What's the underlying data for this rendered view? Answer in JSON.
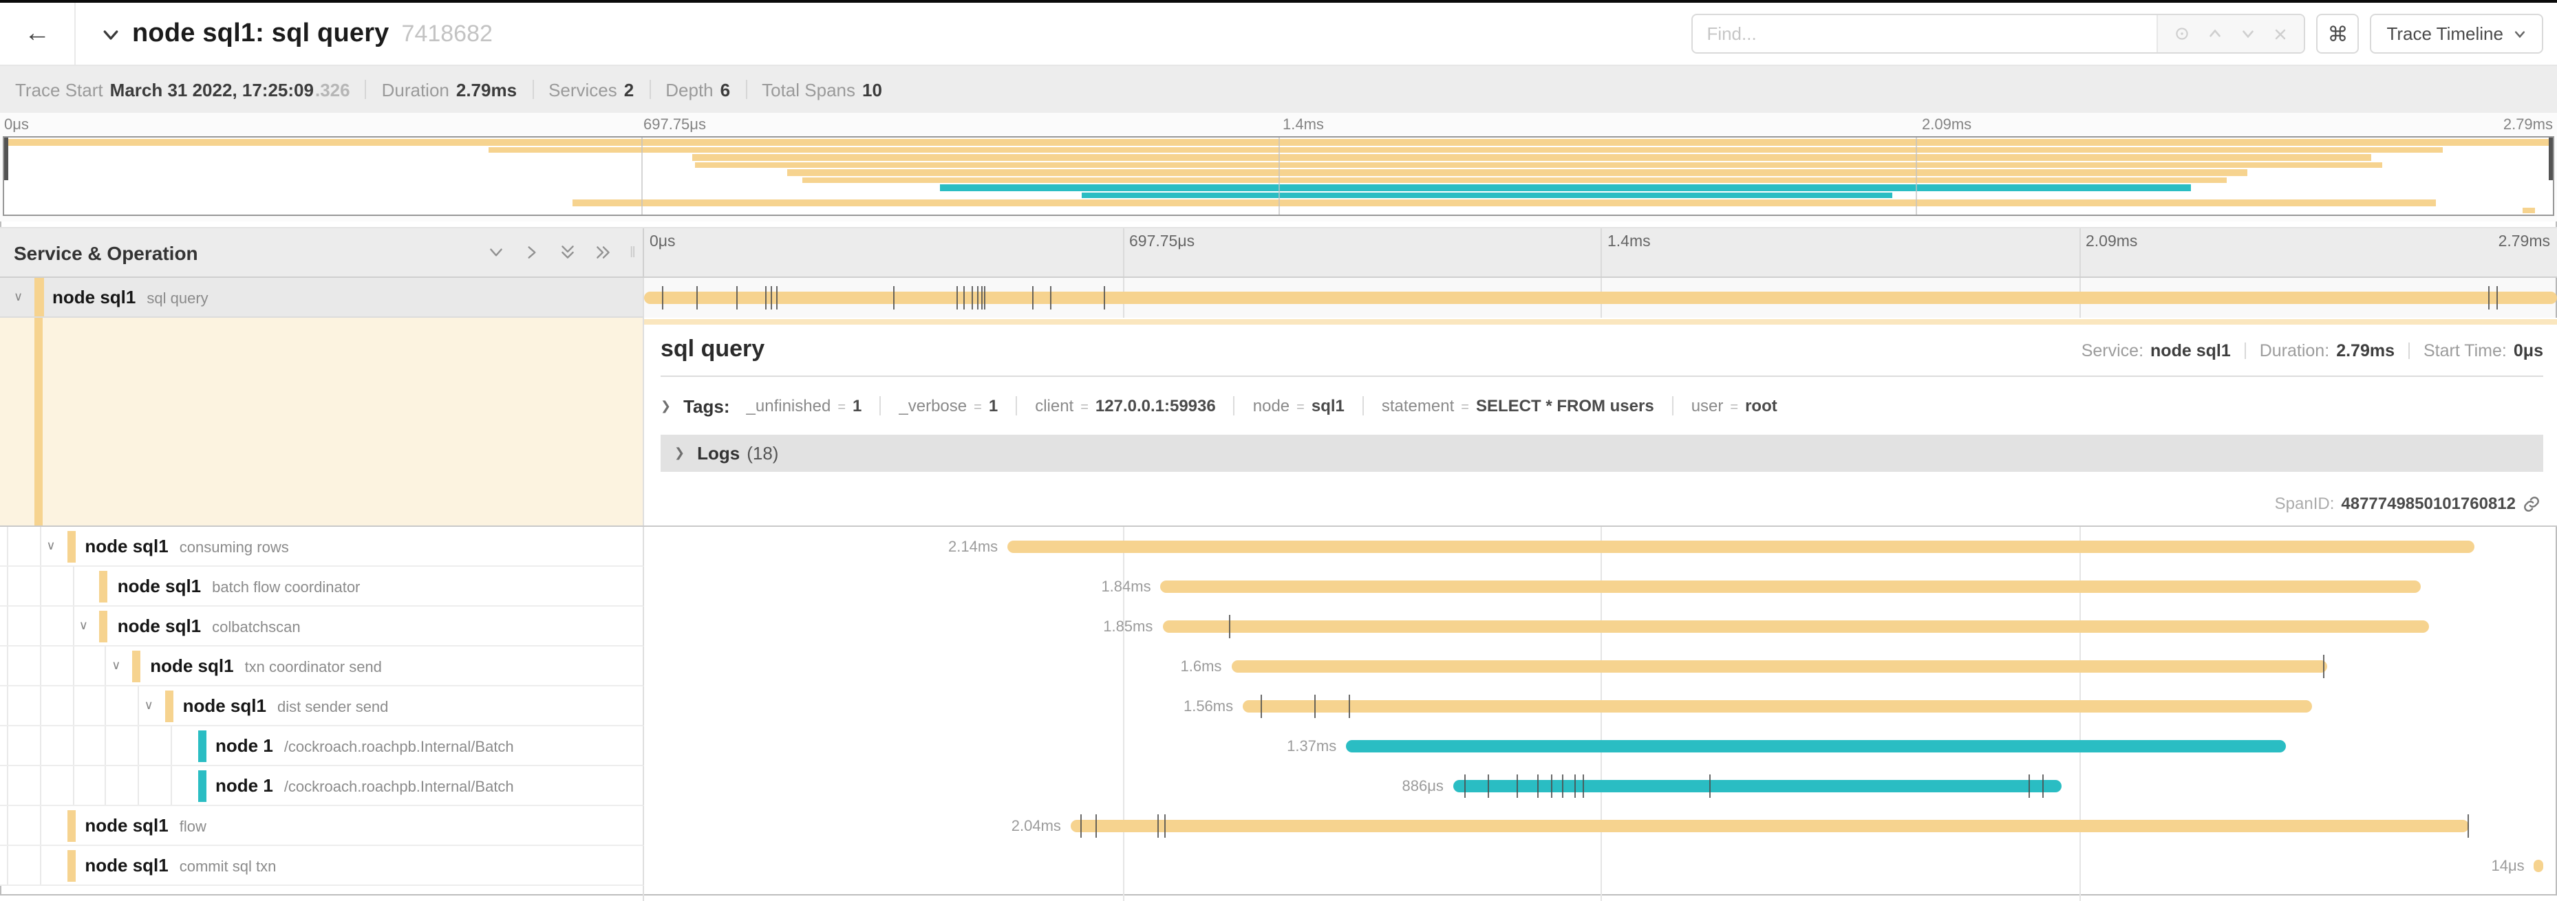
{
  "colors": {
    "tan": "#f6d38f",
    "teal": "#2abdc3",
    "tan_light": "#fae6be",
    "cream": "#fcf3e0"
  },
  "icons": {
    "back_arrow": "←",
    "cmd_glyph": "⌘",
    "chevron_small": "∨",
    "resizer": "‖"
  },
  "header": {
    "title": "node sql1: sql query",
    "trace_id": "7418682",
    "find_placeholder": "Find...",
    "view_selector_label": "Trace Timeline"
  },
  "info": {
    "trace_start_label": "Trace Start",
    "trace_start_value": "March 31 2022, 17:25:09",
    "trace_start_fraction": ".326",
    "duration_label": "Duration",
    "duration_value": "2.79ms",
    "services_label": "Services",
    "services_value": "2",
    "depth_label": "Depth",
    "depth_value": "6",
    "total_spans_label": "Total Spans",
    "total_spans_value": "10"
  },
  "timeline": {
    "ruler_labels": [
      "0μs",
      "697.75μs",
      "1.4ms",
      "2.09ms",
      "2.79ms"
    ]
  },
  "left_header": {
    "title": "Service & Operation"
  },
  "spans": [
    {
      "service": "node sql1",
      "operation": "sql query",
      "depth": 0,
      "color": "tan",
      "has_children": true,
      "selected": true,
      "start": 0,
      "end": 1,
      "duration": "",
      "ticks": [
        0.009,
        0.027,
        0.048,
        0.063,
        0.066,
        0.069,
        0.13,
        0.163,
        0.167,
        0.171,
        0.174,
        0.176,
        0.178,
        0.203,
        0.212,
        0.24,
        0.964,
        0.968
      ]
    },
    {
      "service": "node sql1",
      "operation": "consuming rows",
      "depth": 1,
      "color": "tan",
      "has_children": true,
      "start": 0.19,
      "end": 0.957,
      "duration": "2.14ms",
      "ticks": []
    },
    {
      "service": "node sql1",
      "operation": "batch flow coordinator",
      "depth": 2,
      "color": "tan",
      "has_children": false,
      "start": 0.27,
      "end": 0.929,
      "duration": "1.84ms",
      "ticks": []
    },
    {
      "service": "node sql1",
      "operation": "colbatchscan",
      "depth": 2,
      "color": "tan",
      "has_children": true,
      "start": 0.271,
      "end": 0.933,
      "duration": "1.85ms",
      "ticks": [
        0.306
      ]
    },
    {
      "service": "node sql1",
      "operation": "txn coordinator send",
      "depth": 3,
      "color": "tan",
      "has_children": true,
      "start": 0.307,
      "end": 0.88,
      "duration": "1.6ms",
      "ticks": [
        0.878
      ]
    },
    {
      "service": "node sql1",
      "operation": "dist sender send",
      "depth": 4,
      "color": "tan",
      "has_children": true,
      "start": 0.313,
      "end": 0.872,
      "duration": "1.56ms",
      "ticks": [
        0.322,
        0.35,
        0.368
      ]
    },
    {
      "service": "node 1",
      "operation": "/cockroach.roachpb.Internal/Batch",
      "depth": 5,
      "color": "teal",
      "has_children": false,
      "start": 0.367,
      "end": 0.858,
      "duration": "1.37ms",
      "ticks": []
    },
    {
      "service": "node 1",
      "operation": "/cockroach.roachpb.Internal/Batch",
      "depth": 5,
      "color": "teal",
      "has_children": false,
      "start": 0.423,
      "end": 0.741,
      "duration": "886μs",
      "ticks": [
        0.429,
        0.441,
        0.456,
        0.467,
        0.474,
        0.48,
        0.486,
        0.491,
        0.557,
        0.724,
        0.731
      ]
    },
    {
      "service": "node sql1",
      "operation": "flow",
      "depth": 1,
      "color": "tan",
      "has_children": false,
      "start": 0.223,
      "end": 0.954,
      "duration": "2.04ms",
      "ticks": [
        0.228,
        0.236,
        0.268,
        0.272,
        0.953
      ]
    },
    {
      "service": "node sql1",
      "operation": "commit sql txn",
      "depth": 1,
      "color": "tan",
      "has_children": false,
      "start": 0.988,
      "end": 0.993,
      "duration": "14μs",
      "ticks": []
    }
  ],
  "detail": {
    "title": "sql query",
    "service_label": "Service:",
    "service_value": "node sql1",
    "duration_label": "Duration:",
    "duration_value": "2.79ms",
    "start_label": "Start Time:",
    "start_value": "0μs",
    "tags_label": "Tags:",
    "tags_equals": "=",
    "tags": [
      {
        "key": "_unfinished",
        "value": "1"
      },
      {
        "key": "_verbose",
        "value": "1"
      },
      {
        "key": "client",
        "value": "127.0.0.1:59936"
      },
      {
        "key": "node",
        "value": "sql1"
      },
      {
        "key": "statement",
        "value": "SELECT * FROM users"
      },
      {
        "key": "user",
        "value": "root"
      }
    ],
    "logs_label": "Logs",
    "logs_count": "(18)",
    "spanid_label": "SpanID:",
    "spanid_value": "4877749850101760812"
  }
}
